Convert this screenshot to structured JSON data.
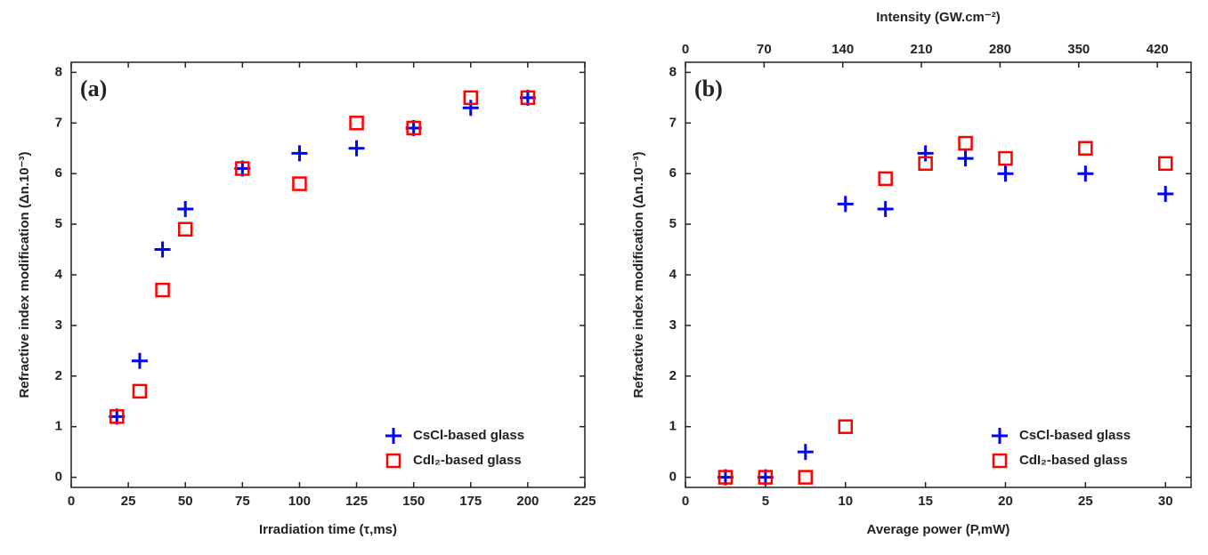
{
  "chart_data": [
    {
      "type": "scatter",
      "panel_label": "(a)",
      "xlabel": "Irradiation time (τ,ms)",
      "ylabel": "Refractive index modification (Δn.10⁻³)",
      "xlim": [
        0,
        225
      ],
      "xticks": [
        0,
        25,
        50,
        75,
        100,
        125,
        150,
        175,
        200,
        225
      ],
      "ylim": [
        -0.2,
        8.2
      ],
      "yticks": [
        0,
        1,
        2,
        3,
        4,
        5,
        6,
        7,
        8
      ],
      "legend": "lower right",
      "series": [
        {
          "name": "CsCl-based glass",
          "color": "#0000ff",
          "marker": "plus",
          "x": [
            20,
            30,
            40,
            50,
            75,
            100,
            125,
            150,
            175,
            200
          ],
          "values": [
            1.2,
            2.3,
            4.5,
            5.3,
            6.1,
            6.4,
            6.5,
            6.9,
            7.3,
            7.5
          ]
        },
        {
          "name": "CdI₂-based glass",
          "color": "#ff0000",
          "marker": "square",
          "x": [
            20,
            30,
            40,
            50,
            75,
            100,
            125,
            150,
            175,
            200
          ],
          "values": [
            1.2,
            1.7,
            3.7,
            4.9,
            6.1,
            5.8,
            7.0,
            6.9,
            7.5,
            7.5
          ]
        }
      ]
    },
    {
      "type": "scatter",
      "panel_label": "(b)",
      "xlabel": "Average power (P,mW)",
      "ylabel": "Refractive index modification (Δn.10⁻³)",
      "x2label": "Intensity (GW.cm⁻²)",
      "xlim": [
        0,
        31.6
      ],
      "xticks": [
        0,
        5,
        10,
        15,
        20,
        25,
        30
      ],
      "x2lim": [
        0,
        450
      ],
      "x2ticks": [
        0,
        70,
        140,
        210,
        280,
        350,
        420
      ],
      "ylim": [
        -0.2,
        8.2
      ],
      "yticks": [
        0,
        1,
        2,
        3,
        4,
        5,
        6,
        7,
        8
      ],
      "legend": "lower right",
      "series": [
        {
          "name": "CsCl-based glass",
          "color": "#0000ff",
          "marker": "plus",
          "x": [
            2.5,
            5,
            7.5,
            10,
            12.5,
            15,
            17.5,
            20,
            25,
            30
          ],
          "values": [
            0,
            0,
            0.5,
            5.4,
            5.3,
            6.4,
            6.3,
            6.0,
            6.0,
            5.6
          ]
        },
        {
          "name": "CdI₂-based glass",
          "color": "#ff0000",
          "marker": "square",
          "x": [
            2.5,
            5,
            7.5,
            10,
            12.5,
            15,
            17.5,
            20,
            25,
            30
          ],
          "values": [
            0,
            0,
            0,
            1.0,
            5.9,
            6.2,
            6.6,
            6.3,
            6.5,
            6.2
          ]
        }
      ]
    }
  ]
}
